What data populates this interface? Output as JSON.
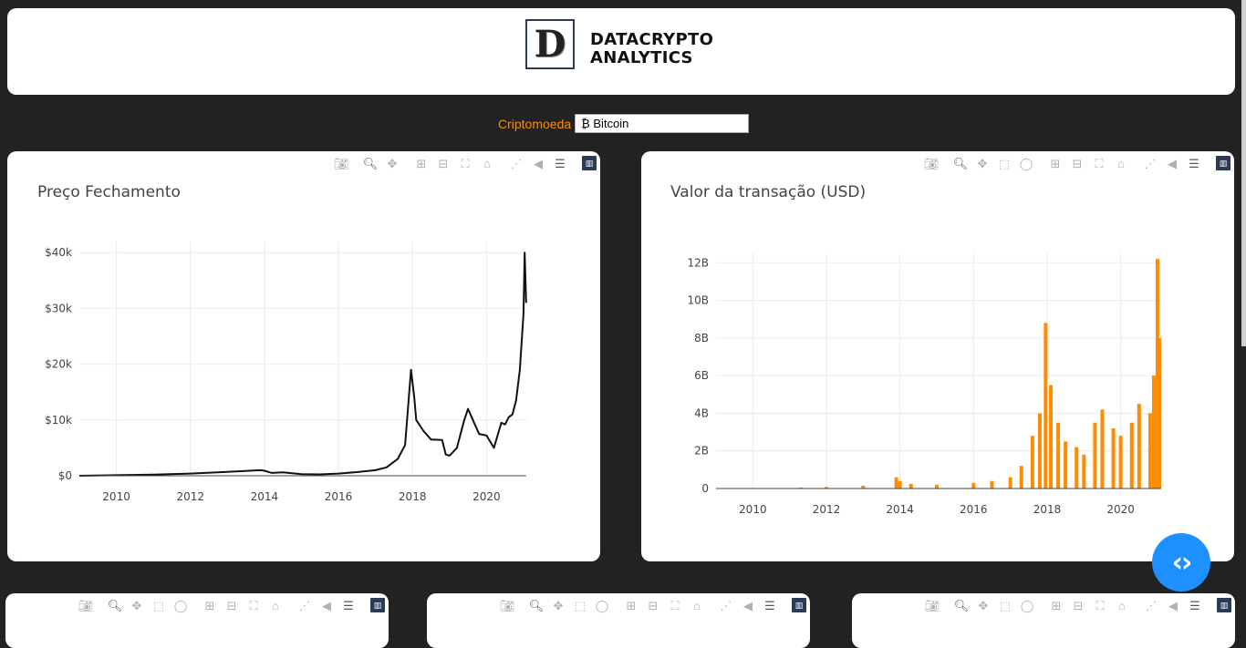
{
  "header": {
    "logo_letter": "D",
    "logo_line1": "DATACRYPTO",
    "logo_line2": "ANALYTICS"
  },
  "selector": {
    "label": "Criptomoeda",
    "value": "₿ Bitcoin"
  },
  "icons": [
    "camera-icon",
    "zoom-icon",
    "pan-icon",
    "box-select-icon",
    "lasso-icon",
    "zoom-in-icon",
    "zoom-out-icon",
    "autoscale-icon",
    "reset-axes-icon",
    "spike-lines-icon",
    "hover-closest-icon",
    "hover-compare-icon",
    "plotly-logo-icon",
    "code-icon"
  ],
  "fab": {
    "label": "‹›"
  },
  "chart_data": [
    {
      "type": "line",
      "title": "Preço Fechamento",
      "xlabel": "",
      "ylabel": "",
      "x_ticks": [
        "2010",
        "2012",
        "2014",
        "2016",
        "2018",
        "2020"
      ],
      "y_ticks": [
        "$0",
        "$10k",
        "$20k",
        "$30k",
        "$40k"
      ],
      "xlim": [
        2009.0,
        2021.1
      ],
      "ylim": [
        0,
        42000
      ],
      "color": "#111111",
      "x": [
        2009.0,
        2010.0,
        2011.0,
        2012.0,
        2013.0,
        2013.9,
        2014.0,
        2014.2,
        2014.5,
        2015.0,
        2015.5,
        2016.0,
        2016.5,
        2017.0,
        2017.3,
        2017.6,
        2017.8,
        2017.96,
        2018.05,
        2018.1,
        2018.3,
        2018.5,
        2018.8,
        2018.9,
        2019.0,
        2019.2,
        2019.4,
        2019.5,
        2019.6,
        2019.8,
        2020.0,
        2020.2,
        2020.4,
        2020.5,
        2020.6,
        2020.7,
        2020.8,
        2020.9,
        2021.0,
        2021.03,
        2021.07
      ],
      "y": [
        0,
        100,
        200,
        400,
        700,
        1000,
        900,
        500,
        600,
        300,
        250,
        400,
        650,
        1000,
        1500,
        3000,
        5500,
        19000,
        14000,
        10000,
        8000,
        6500,
        6400,
        3800,
        3600,
        5000,
        10000,
        12000,
        10500,
        7500,
        7200,
        5000,
        9500,
        9200,
        10500,
        11000,
        13500,
        19000,
        29000,
        40000,
        31000
      ]
    },
    {
      "type": "bar",
      "title": "Valor da transação (USD)",
      "xlabel": "",
      "ylabel": "",
      "x_ticks": [
        "2010",
        "2012",
        "2014",
        "2016",
        "2018",
        "2020"
      ],
      "y_ticks": [
        "0",
        "2B",
        "4B",
        "6B",
        "8B",
        "10B",
        "12B"
      ],
      "xlim": [
        2009.0,
        2021.1
      ],
      "ylim": [
        0,
        12.5
      ],
      "color": "#ff8c00",
      "x": [
        2011.3,
        2012.0,
        2013.0,
        2013.9,
        2014.0,
        2014.3,
        2015.0,
        2016.0,
        2016.5,
        2017.0,
        2017.3,
        2017.6,
        2017.8,
        2017.96,
        2018.1,
        2018.3,
        2018.5,
        2018.8,
        2019.0,
        2019.3,
        2019.5,
        2019.8,
        2020.0,
        2020.3,
        2020.5,
        2020.8,
        2020.9,
        2021.0,
        2021.05
      ],
      "y": [
        0.05,
        0.08,
        0.15,
        0.6,
        0.4,
        0.25,
        0.2,
        0.3,
        0.4,
        0.6,
        1.2,
        2.8,
        4.0,
        8.8,
        5.5,
        3.5,
        2.5,
        2.2,
        1.8,
        3.5,
        4.2,
        3.2,
        2.8,
        3.5,
        4.5,
        4.0,
        6.0,
        12.2,
        8.0
      ]
    }
  ]
}
